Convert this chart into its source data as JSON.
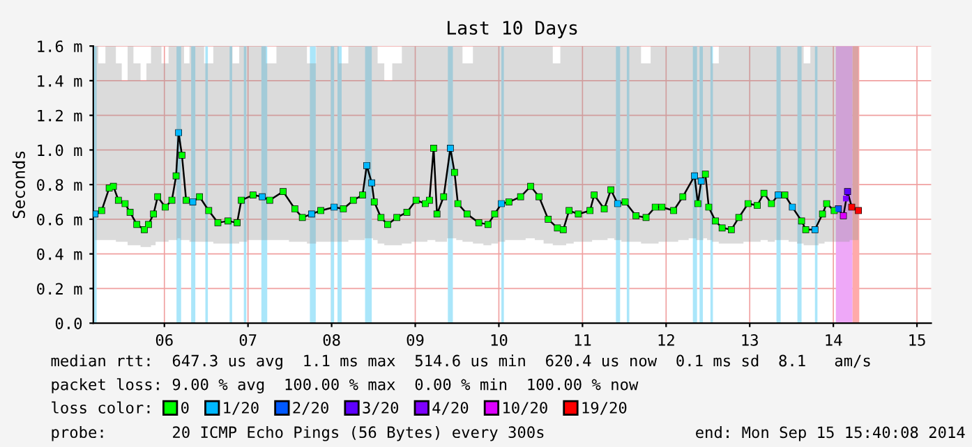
{
  "chart_data": {
    "type": "line",
    "title": "Last 10 Days",
    "ylabel": "Seconds",
    "legend_title": "loss color:",
    "legend": "bottom",
    "grid": true,
    "marker": "square",
    "xlim": [
      5.15,
      15.17
    ],
    "xticks": [
      {
        "value": 6,
        "label": "06"
      },
      {
        "value": 7,
        "label": "07"
      },
      {
        "value": 8,
        "label": "08"
      },
      {
        "value": 9,
        "label": "09"
      },
      {
        "value": 10,
        "label": "10"
      },
      {
        "value": 11,
        "label": "11"
      },
      {
        "value": 12,
        "label": "12"
      },
      {
        "value": 13,
        "label": "13"
      },
      {
        "value": 14,
        "label": "14"
      },
      {
        "value": 15,
        "label": "15"
      }
    ],
    "ylim": [
      0,
      1.6
    ],
    "yticks": [
      {
        "value": 0,
        "label": "0.0"
      },
      {
        "value": 0.2,
        "label": "0.2 m"
      },
      {
        "value": 0.4,
        "label": "0.4 m"
      },
      {
        "value": 0.6,
        "label": "0.6 m"
      },
      {
        "value": 0.8,
        "label": "0.8 m"
      },
      {
        "value": 1.0,
        "label": "1.0 m"
      },
      {
        "value": 1.2,
        "label": "1.2 m"
      },
      {
        "value": 1.4,
        "label": "1.4 m"
      },
      {
        "value": 1.6,
        "label": "1.6 m"
      }
    ],
    "series": [
      {
        "color": "#000000",
        "x": [
          5.17,
          5.25,
          5.34,
          5.39,
          5.45,
          5.53,
          5.59,
          5.67,
          5.76,
          5.81,
          5.87,
          5.92,
          6.01,
          6.09,
          6.14,
          6.17,
          6.21,
          6.26,
          6.34,
          6.42,
          6.53,
          6.64,
          6.76,
          6.87,
          6.92,
          7.06,
          7.17,
          7.26,
          7.42,
          7.56,
          7.65,
          7.76,
          7.87,
          8.03,
          8.14,
          8.26,
          8.37,
          8.42,
          8.48,
          8.51,
          8.59,
          8.67,
          8.78,
          8.9,
          9.01,
          9.12,
          9.17,
          9.22,
          9.26,
          9.34,
          9.42,
          9.47,
          9.51,
          9.62,
          9.76,
          9.87,
          9.95,
          10.03,
          10.12,
          10.26,
          10.38,
          10.48,
          10.59,
          10.7,
          10.77,
          10.84,
          10.95,
          11.09,
          11.14,
          11.26,
          11.34,
          11.42,
          11.51,
          11.64,
          11.76,
          11.87,
          11.95,
          12.09,
          12.2,
          12.34,
          12.38,
          12.42,
          12.47,
          12.51,
          12.59,
          12.67,
          12.78,
          12.87,
          12.98,
          13.09,
          13.17,
          13.26,
          13.34,
          13.42,
          13.51,
          13.62,
          13.67,
          13.78,
          13.87,
          13.92,
          14.01,
          14.06,
          14.12,
          14.17,
          14.22,
          14.3
        ],
        "values": [
          0.63,
          0.65,
          0.78,
          0.79,
          0.71,
          0.69,
          0.64,
          0.57,
          0.54,
          0.57,
          0.63,
          0.73,
          0.67,
          0.71,
          0.85,
          1.1,
          0.97,
          0.71,
          0.7,
          0.73,
          0.65,
          0.58,
          0.59,
          0.58,
          0.71,
          0.74,
          0.73,
          0.71,
          0.76,
          0.66,
          0.61,
          0.63,
          0.65,
          0.67,
          0.66,
          0.71,
          0.74,
          0.91,
          0.81,
          0.7,
          0.61,
          0.57,
          0.61,
          0.64,
          0.71,
          0.69,
          0.71,
          1.01,
          0.63,
          0.73,
          1.01,
          0.87,
          0.69,
          0.63,
          0.58,
          0.57,
          0.63,
          0.69,
          0.7,
          0.73,
          0.79,
          0.73,
          0.6,
          0.55,
          0.54,
          0.65,
          0.63,
          0.65,
          0.74,
          0.66,
          0.77,
          0.69,
          0.7,
          0.62,
          0.61,
          0.67,
          0.67,
          0.65,
          0.73,
          0.85,
          0.69,
          0.82,
          0.86,
          0.67,
          0.59,
          0.55,
          0.54,
          0.61,
          0.69,
          0.68,
          0.75,
          0.69,
          0.74,
          0.74,
          0.67,
          0.59,
          0.54,
          0.54,
          0.63,
          0.69,
          0.65,
          0.66,
          0.62,
          0.76,
          0.67,
          0.65
        ],
        "lower": [
          0.48,
          0.48,
          0.48,
          0.48,
          0.47,
          0.47,
          0.45,
          0.45,
          0.44,
          0.44,
          0.45,
          0.47,
          0.47,
          0.48,
          0.48,
          0.49,
          0.48,
          0.48,
          0.47,
          0.47,
          0.47,
          0.46,
          0.46,
          0.46,
          0.47,
          0.48,
          0.48,
          0.48,
          0.48,
          0.47,
          0.47,
          0.46,
          0.47,
          0.47,
          0.47,
          0.48,
          0.48,
          0.49,
          0.49,
          0.48,
          0.46,
          0.45,
          0.45,
          0.46,
          0.47,
          0.47,
          0.48,
          0.48,
          0.47,
          0.47,
          0.49,
          0.49,
          0.48,
          0.47,
          0.46,
          0.45,
          0.46,
          0.47,
          0.48,
          0.48,
          0.49,
          0.48,
          0.46,
          0.45,
          0.45,
          0.46,
          0.47,
          0.47,
          0.48,
          0.48,
          0.49,
          0.48,
          0.47,
          0.47,
          0.46,
          0.46,
          0.47,
          0.47,
          0.48,
          0.49,
          0.48,
          0.48,
          0.49,
          0.48,
          0.47,
          0.46,
          0.46,
          0.46,
          0.47,
          0.47,
          0.48,
          0.47,
          0.48,
          0.48,
          0.47,
          0.46,
          0.45,
          0.45,
          0.46,
          0.47,
          0.47,
          0.47,
          0.47,
          0.47,
          0.48,
          0.48
        ],
        "upper": [
          1.6,
          1.5,
          1.6,
          1.6,
          1.5,
          1.4,
          1.6,
          1.5,
          1.4,
          1.5,
          1.6,
          1.6,
          1.5,
          1.6,
          1.6,
          1.6,
          1.6,
          1.5,
          1.6,
          1.6,
          1.5,
          1.6,
          1.6,
          1.5,
          1.6,
          1.6,
          1.6,
          1.5,
          1.6,
          1.6,
          1.6,
          1.5,
          1.6,
          1.6,
          1.5,
          1.6,
          1.6,
          1.6,
          1.6,
          1.6,
          1.5,
          1.4,
          1.5,
          1.6,
          1.6,
          1.6,
          1.6,
          1.6,
          1.6,
          1.6,
          1.6,
          1.6,
          1.6,
          1.5,
          1.6,
          1.6,
          1.6,
          1.6,
          1.6,
          1.6,
          1.6,
          1.6,
          1.6,
          1.5,
          1.6,
          1.6,
          1.6,
          1.6,
          1.6,
          1.6,
          1.6,
          1.6,
          1.6,
          1.6,
          1.5,
          1.6,
          1.6,
          1.6,
          1.6,
          1.6,
          1.6,
          1.6,
          1.6,
          1.6,
          1.5,
          1.6,
          1.6,
          1.6,
          1.6,
          1.6,
          1.6,
          1.6,
          1.6,
          1.6,
          1.6,
          1.6,
          1.5,
          1.6,
          1.6,
          1.6,
          1.6,
          1.6,
          1.6,
          1.6,
          1.6,
          1.6
        ]
      },
      {
        "type": "scatter",
        "name": "0",
        "color": "#00ff00",
        "x": [
          5.25,
          5.34,
          5.39,
          5.45,
          5.53,
          5.59,
          5.67,
          5.76,
          5.81,
          5.87,
          5.92,
          6.01,
          6.09,
          6.14,
          6.21,
          6.26,
          6.42,
          6.53,
          6.64,
          6.76,
          6.87,
          6.92,
          7.06,
          7.26,
          7.42,
          7.56,
          7.65,
          7.87,
          8.14,
          8.26,
          8.37,
          8.51,
          8.59,
          8.67,
          8.78,
          8.9,
          9.01,
          9.12,
          9.17,
          9.22,
          9.26,
          9.34,
          9.47,
          9.51,
          9.62,
          9.76,
          9.87,
          9.95,
          10.12,
          10.26,
          10.38,
          10.48,
          10.59,
          10.7,
          10.77,
          10.84,
          10.95,
          11.09,
          11.14,
          11.26,
          11.34,
          11.51,
          11.64,
          11.76,
          11.87,
          11.95,
          12.09,
          12.2,
          12.38,
          12.47,
          12.51,
          12.59,
          12.67,
          12.78,
          12.87,
          12.98,
          13.09,
          13.17,
          13.26,
          13.42,
          13.62,
          13.67,
          13.87,
          13.92,
          14.01
        ],
        "values": [
          0.65,
          0.78,
          0.79,
          0.71,
          0.69,
          0.64,
          0.57,
          0.54,
          0.57,
          0.63,
          0.73,
          0.67,
          0.71,
          0.85,
          0.97,
          0.71,
          0.73,
          0.65,
          0.58,
          0.59,
          0.58,
          0.71,
          0.74,
          0.71,
          0.76,
          0.66,
          0.61,
          0.65,
          0.66,
          0.71,
          0.74,
          0.7,
          0.61,
          0.57,
          0.61,
          0.64,
          0.71,
          0.69,
          0.71,
          1.01,
          0.63,
          0.73,
          0.87,
          0.69,
          0.63,
          0.58,
          0.57,
          0.63,
          0.7,
          0.73,
          0.79,
          0.73,
          0.6,
          0.55,
          0.54,
          0.65,
          0.63,
          0.65,
          0.74,
          0.66,
          0.77,
          0.7,
          0.62,
          0.61,
          0.67,
          0.67,
          0.65,
          0.73,
          0.69,
          0.86,
          0.67,
          0.59,
          0.55,
          0.54,
          0.61,
          0.69,
          0.68,
          0.75,
          0.69,
          0.74,
          0.59,
          0.54,
          0.63,
          0.69,
          0.65
        ]
      },
      {
        "type": "scatter",
        "name": "1/20",
        "color": "#00b8ff",
        "x": [
          5.17,
          6.17,
          6.34,
          7.17,
          7.76,
          8.03,
          8.42,
          8.48,
          9.42,
          10.03,
          11.42,
          12.34,
          12.42,
          13.34,
          13.51,
          13.78
        ],
        "values": [
          0.63,
          1.1,
          0.7,
          0.73,
          0.63,
          0.67,
          0.91,
          0.81,
          1.01,
          0.69,
          0.69,
          0.85,
          0.82,
          0.74,
          0.67,
          0.54
        ]
      },
      {
        "type": "scatter",
        "name": "2/20",
        "color": "#0059ff",
        "x": [
          14.06
        ],
        "values": [
          0.66
        ]
      },
      {
        "type": "scatter",
        "name": "3/20",
        "color": "#5e00ff",
        "x": [
          14.17
        ],
        "values": [
          0.76
        ]
      },
      {
        "type": "scatter",
        "name": "4/20",
        "color": "#7e00ff",
        "x": [
          14.15
        ],
        "values": [
          0.72
        ]
      },
      {
        "type": "scatter",
        "name": "10/20",
        "color": "#dd00ff",
        "x": [
          14.12
        ],
        "values": [
          0.62
        ]
      },
      {
        "type": "scatter",
        "name": "19/20",
        "color": "#ff0000",
        "x": [
          14.22,
          14.3
        ],
        "values": [
          0.67,
          0.65
        ]
      }
    ],
    "bands": [
      {
        "axis": "x",
        "from": 5.15,
        "to": 5.19,
        "color": "#aae6fa"
      },
      {
        "axis": "x",
        "from": 6.145,
        "to": 6.2,
        "color": "#aae6fa"
      },
      {
        "axis": "x",
        "from": 6.32,
        "to": 6.37,
        "color": "#aae6fa"
      },
      {
        "axis": "x",
        "from": 6.49,
        "to": 6.52,
        "color": "#aae6fa"
      },
      {
        "axis": "x",
        "from": 6.78,
        "to": 6.81,
        "color": "#aae6fa"
      },
      {
        "axis": "x",
        "from": 6.95,
        "to": 6.98,
        "color": "#aae6fa"
      },
      {
        "axis": "x",
        "from": 7.16,
        "to": 7.23,
        "color": "#aae6fa"
      },
      {
        "axis": "x",
        "from": 7.74,
        "to": 7.81,
        "color": "#aae6fa"
      },
      {
        "axis": "x",
        "from": 7.99,
        "to": 8.03,
        "color": "#aae6fa"
      },
      {
        "axis": "x",
        "from": 8.07,
        "to": 8.12,
        "color": "#aae6fa"
      },
      {
        "axis": "x",
        "from": 8.4,
        "to": 8.48,
        "color": "#aae6fa"
      },
      {
        "axis": "x",
        "from": 9.39,
        "to": 9.45,
        "color": "#aae6fa"
      },
      {
        "axis": "x",
        "from": 10.03,
        "to": 10.06,
        "color": "#aae6fa"
      },
      {
        "axis": "x",
        "from": 11.4,
        "to": 11.45,
        "color": "#aae6fa"
      },
      {
        "axis": "x",
        "from": 11.53,
        "to": 11.56,
        "color": "#aae6fa"
      },
      {
        "axis": "x",
        "from": 12.32,
        "to": 12.37,
        "color": "#aae6fa"
      },
      {
        "axis": "x",
        "from": 12.4,
        "to": 12.44,
        "color": "#aae6fa"
      },
      {
        "axis": "x",
        "from": 12.53,
        "to": 12.56,
        "color": "#aae6fa"
      },
      {
        "axis": "x",
        "from": 13.32,
        "to": 13.37,
        "color": "#aae6fa"
      },
      {
        "axis": "x",
        "from": 13.57,
        "to": 13.62,
        "color": "#aae6fa"
      },
      {
        "axis": "x",
        "from": 13.78,
        "to": 13.81,
        "color": "#aae6fa"
      },
      {
        "axis": "x",
        "from": 14.03,
        "to": 14.23,
        "color": "#eea8f8"
      },
      {
        "axis": "x",
        "from": 14.23,
        "to": 14.31,
        "color": "#ffaaaa"
      }
    ],
    "annotations": [
      "median rtt:  647.3 us avg  1.1 ms max  514.6 us min  620.4 us now  0.1 ms sd  8.1   am/s",
      "packet loss: 9.00 % avg  100.00 % max  0.00 % min  100.00 % now",
      "probe:       20 ICMP Echo Pings (56 Bytes) every 300s",
      "end: Mon Sep 15 15:40:08 2014"
    ]
  }
}
